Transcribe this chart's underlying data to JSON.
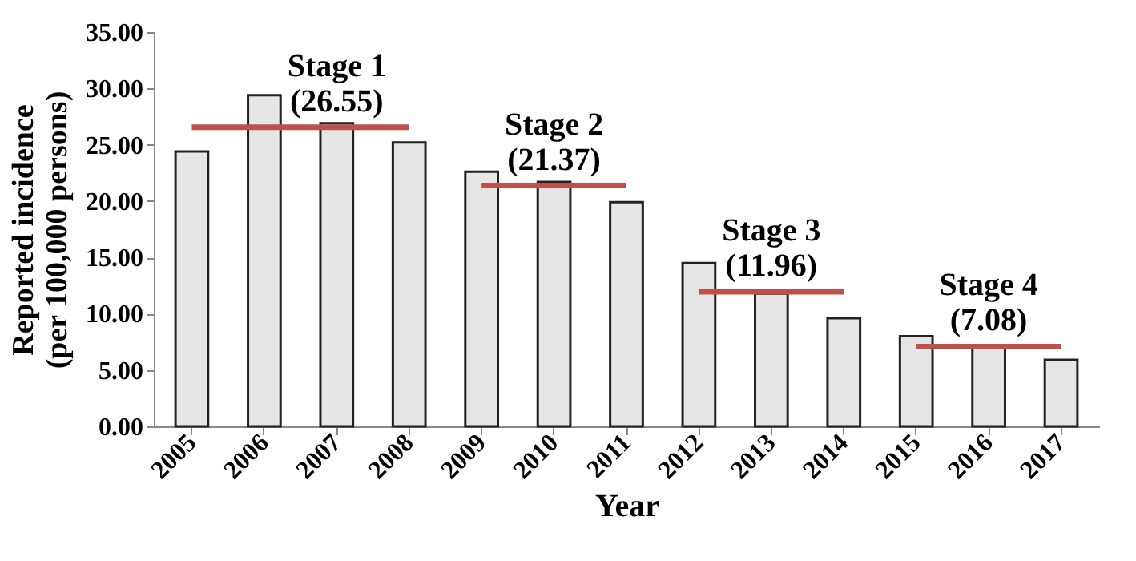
{
  "chart_data": {
    "type": "bar",
    "xlabel": "Year",
    "ylabel": "Reported incidence\n(per 100,000 persons)",
    "categories": [
      "2005",
      "2006",
      "2007",
      "2008",
      "2009",
      "2010",
      "2011",
      "2012",
      "2013",
      "2014",
      "2015",
      "2016",
      "2017"
    ],
    "ylim": [
      0,
      35
    ],
    "yticks": [
      {
        "value": 0,
        "label": "0.00"
      },
      {
        "value": 5,
        "label": "5.00"
      },
      {
        "value": 10,
        "label": "10.00"
      },
      {
        "value": 15,
        "label": "15.00"
      },
      {
        "value": 20,
        "label": "20.00"
      },
      {
        "value": 25,
        "label": "25.00"
      },
      {
        "value": 30,
        "label": "30.00"
      },
      {
        "value": 35,
        "label": "35.00"
      }
    ],
    "grid": false,
    "series": [
      {
        "color": "#e6e6e6",
        "values": [
          24.4,
          29.4,
          26.9,
          25.2,
          22.6,
          21.7,
          19.9,
          14.5,
          11.8,
          9.6,
          8.0,
          7.0,
          5.9
        ]
      },
      {
        "type": "line",
        "color": "#c0504d",
        "values": [
          26.55,
          26.55,
          26.55,
          26.55,
          null,
          null,
          null,
          null,
          null,
          null,
          null,
          null,
          null
        ]
      },
      {
        "type": "line",
        "color": "#c0504d",
        "values": [
          null,
          null,
          null,
          null,
          21.37,
          21.37,
          21.37,
          null,
          null,
          null,
          null,
          null,
          null
        ]
      },
      {
        "type": "line",
        "color": "#c0504d",
        "values": [
          null,
          null,
          null,
          null,
          null,
          null,
          null,
          11.96,
          11.96,
          11.96,
          null,
          null,
          null
        ]
      },
      {
        "type": "line",
        "color": "#c0504d",
        "values": [
          null,
          null,
          null,
          null,
          null,
          null,
          null,
          null,
          null,
          null,
          7.08,
          7.08,
          7.08
        ]
      }
    ],
    "annotations": [
      {
        "text": "Stage 1\n(26.55)",
        "x": "2007",
        "y": 26.55
      },
      {
        "text": "Stage 2\n(21.37)",
        "x": "2010",
        "y": 21.37
      },
      {
        "text": "Stage 3\n(11.96)",
        "x": "2013",
        "y": 11.96
      },
      {
        "text": "Stage 4\n(7.08)",
        "x": "2016",
        "y": 7.08
      }
    ]
  }
}
